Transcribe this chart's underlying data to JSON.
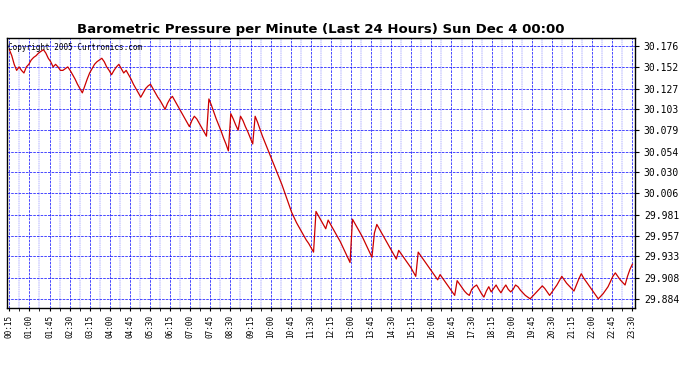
{
  "title": "Barometric Pressure per Minute (Last 24 Hours) Sun Dec 4 00:00",
  "copyright": "Copyright 2005 Curtronics.com",
  "background_color": "#ffffff",
  "plot_bg_color": "#ffffff",
  "grid_color": "#0000ff",
  "line_color": "#cc0000",
  "yticks": [
    29.884,
    29.908,
    29.933,
    29.957,
    29.981,
    30.006,
    30.03,
    30.054,
    30.079,
    30.103,
    30.127,
    30.152,
    30.176
  ],
  "ylim": [
    29.874,
    30.186
  ],
  "xtick_labels": [
    "00:15",
    "01:00",
    "01:45",
    "02:30",
    "03:15",
    "04:00",
    "04:45",
    "05:30",
    "06:15",
    "07:00",
    "07:45",
    "08:30",
    "09:15",
    "10:00",
    "10:45",
    "11:30",
    "12:15",
    "13:00",
    "13:45",
    "14:30",
    "15:15",
    "16:00",
    "16:45",
    "17:30",
    "18:15",
    "19:00",
    "19:45",
    "20:30",
    "21:15",
    "22:00",
    "22:45",
    "23:30"
  ],
  "pressure_data": [
    30.172,
    30.165,
    30.155,
    30.148,
    30.152,
    30.148,
    30.145,
    30.152,
    30.155,
    30.16,
    30.163,
    30.165,
    30.168,
    30.17,
    30.172,
    30.168,
    30.162,
    30.158,
    30.152,
    30.155,
    30.152,
    30.148,
    30.148,
    30.15,
    30.152,
    30.148,
    30.143,
    30.138,
    30.132,
    30.127,
    30.122,
    30.13,
    30.138,
    30.145,
    30.15,
    30.155,
    30.158,
    30.16,
    30.162,
    30.158,
    30.152,
    30.148,
    30.143,
    30.148,
    30.152,
    30.155,
    30.15,
    30.145,
    30.148,
    30.143,
    30.138,
    30.132,
    30.127,
    30.122,
    30.117,
    30.122,
    30.127,
    30.13,
    30.132,
    30.127,
    30.122,
    30.117,
    30.113,
    30.108,
    30.103,
    30.11,
    30.115,
    30.118,
    30.113,
    30.108,
    30.103,
    30.098,
    30.093,
    30.088,
    30.083,
    30.09,
    30.095,
    30.092,
    30.087,
    30.082,
    30.077,
    30.072,
    30.115,
    30.108,
    30.1,
    30.092,
    30.085,
    30.078,
    30.07,
    30.063,
    30.055,
    30.098,
    30.092,
    30.085,
    30.079,
    30.095,
    30.09,
    30.083,
    30.077,
    30.07,
    30.063,
    30.095,
    30.088,
    30.08,
    30.072,
    30.065,
    30.058,
    30.051,
    30.044,
    30.037,
    30.03,
    30.023,
    30.016,
    30.008,
    30.0,
    29.992,
    29.984,
    29.978,
    29.972,
    29.967,
    29.962,
    29.957,
    29.952,
    29.948,
    29.943,
    29.938,
    29.985,
    29.98,
    29.975,
    29.97,
    29.965,
    29.975,
    29.97,
    29.965,
    29.96,
    29.955,
    29.95,
    29.944,
    29.938,
    29.932,
    29.926,
    29.976,
    29.971,
    29.966,
    29.961,
    29.956,
    29.95,
    29.944,
    29.938,
    29.932,
    29.96,
    29.97,
    29.965,
    29.96,
    29.955,
    29.95,
    29.945,
    29.94,
    29.935,
    29.93,
    29.94,
    29.936,
    29.932,
    29.928,
    29.924,
    29.92,
    29.915,
    29.91,
    29.938,
    29.934,
    29.93,
    29.926,
    29.922,
    29.918,
    29.914,
    29.91,
    29.906,
    29.912,
    29.908,
    29.904,
    29.9,
    29.896,
    29.892,
    29.888,
    29.905,
    29.901,
    29.897,
    29.893,
    29.89,
    29.888,
    29.895,
    29.898,
    29.9,
    29.895,
    29.89,
    29.886,
    29.893,
    29.898,
    29.892,
    29.896,
    29.9,
    29.895,
    29.891,
    29.896,
    29.9,
    29.895,
    29.892,
    29.895,
    29.9,
    29.898,
    29.894,
    29.891,
    29.888,
    29.886,
    29.884,
    29.887,
    29.89,
    29.893,
    29.896,
    29.899,
    29.896,
    29.892,
    29.888,
    29.892,
    29.896,
    29.9,
    29.905,
    29.91,
    29.906,
    29.902,
    29.899,
    29.896,
    29.893,
    29.9,
    29.907,
    29.913,
    29.908,
    29.904,
    29.9,
    29.896,
    29.892,
    29.888,
    29.884,
    29.887,
    29.89,
    29.894,
    29.898,
    29.904,
    29.91,
    29.914,
    29.91,
    29.906,
    29.903,
    29.9,
    29.91,
    29.918,
    29.924
  ]
}
